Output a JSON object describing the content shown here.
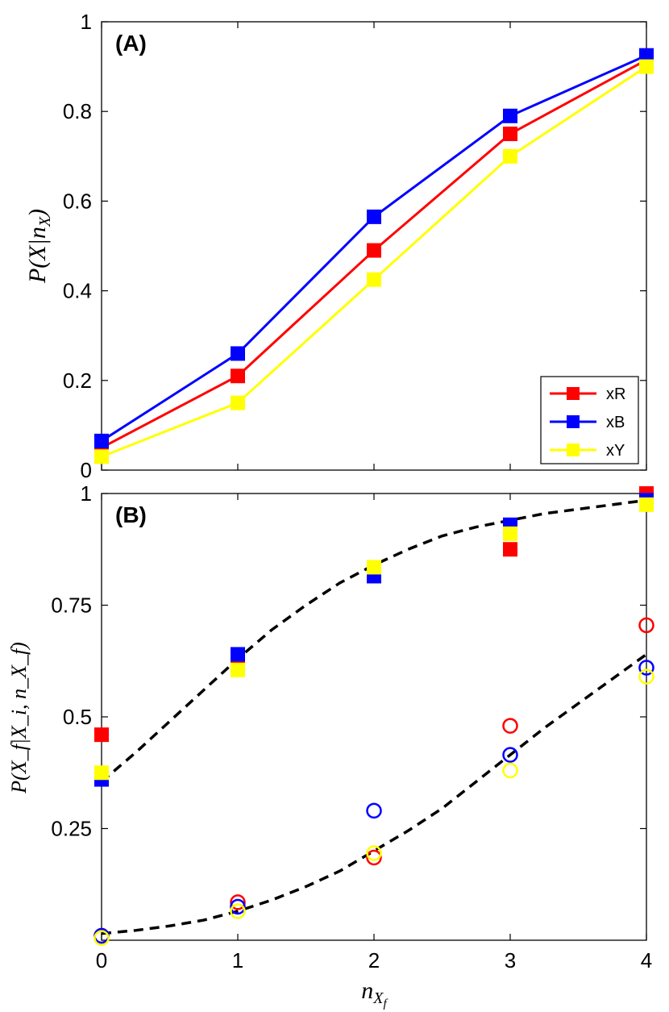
{
  "colors": {
    "xR": "#ff0000",
    "xB": "#0000ff",
    "xY": "#ffff00",
    "fit": "#000000"
  },
  "chart_data": [
    {
      "panel": "A",
      "type": "line",
      "title": "(A)",
      "xlabel": "n_X",
      "ylabel": {
        "prefix": "P(X|n",
        "sub": "X",
        "suffix": ")"
      },
      "xlim": [
        0,
        4
      ],
      "ylim": [
        0,
        1
      ],
      "yticks": [
        0,
        0.2,
        0.4,
        0.6,
        0.8,
        1
      ],
      "ytick_labels": [
        "0",
        "0.2",
        "0.4",
        "0.6",
        "0.8",
        "1"
      ],
      "grid": false,
      "legend": {
        "position": "bottom-right",
        "entries": [
          "xR",
          "xB",
          "xY"
        ]
      },
      "x": [
        0,
        1,
        2,
        3,
        4
      ],
      "series": [
        {
          "name": "xR",
          "color_key": "xR",
          "marker": "square",
          "values": [
            0.05,
            0.21,
            0.49,
            0.75,
            0.915
          ]
        },
        {
          "name": "xB",
          "color_key": "xB",
          "marker": "square",
          "values": [
            0.065,
            0.26,
            0.565,
            0.79,
            0.925
          ]
        },
        {
          "name": "xY",
          "color_key": "xY",
          "marker": "square",
          "values": [
            0.03,
            0.15,
            0.425,
            0.7,
            0.9
          ]
        }
      ]
    },
    {
      "panel": "B",
      "type": "scatter",
      "title": "(B)",
      "xlabel": {
        "prefix": "n",
        "sub": "X",
        "subsub": "f"
      },
      "ylabel": {
        "text": "P(X_f|X_i, n_X_f)"
      },
      "xlim": [
        0,
        4
      ],
      "ylim": [
        0,
        1
      ],
      "xticks": [
        0,
        1,
        2,
        3,
        4
      ],
      "xtick_labels": [
        "0",
        "1",
        "2",
        "3",
        "4"
      ],
      "yticks": [
        0.25,
        0.5,
        0.75,
        1
      ],
      "ytick_labels": [
        "0.25",
        "0.5",
        "0.75",
        "1"
      ],
      "grid": false,
      "x": [
        0,
        1,
        2,
        3,
        4
      ],
      "series": [
        {
          "name": "xR",
          "color_key": "xR",
          "marker": "square",
          "values": [
            0.46,
            0.625,
            0.82,
            0.875,
            1.0
          ]
        },
        {
          "name": "xB",
          "color_key": "xB",
          "marker": "square",
          "values": [
            0.36,
            0.64,
            0.815,
            0.93,
            0.985
          ]
        },
        {
          "name": "xY",
          "color_key": "xY",
          "marker": "square",
          "values": [
            0.375,
            0.605,
            0.835,
            0.91,
            0.975
          ]
        },
        {
          "name": "xR",
          "color_key": "xR",
          "marker": "circle",
          "values": [
            0.01,
            0.085,
            0.185,
            0.48,
            0.705
          ]
        },
        {
          "name": "xB",
          "color_key": "xB",
          "marker": "circle",
          "values": [
            0.01,
            0.075,
            0.29,
            0.415,
            0.61
          ]
        },
        {
          "name": "xY",
          "color_key": "xY",
          "marker": "circle",
          "values": [
            0.005,
            0.065,
            0.195,
            0.38,
            0.59
          ]
        }
      ],
      "fits": [
        {
          "name": "upper-fit",
          "style": "dashed",
          "x": [
            0,
            0.25,
            0.5,
            0.75,
            1,
            1.25,
            1.5,
            1.75,
            2,
            2.25,
            2.5,
            2.75,
            3,
            3.25,
            3.5,
            3.75,
            4
          ],
          "values": [
            0.355,
            0.42,
            0.49,
            0.56,
            0.63,
            0.695,
            0.75,
            0.8,
            0.84,
            0.875,
            0.905,
            0.925,
            0.94,
            0.955,
            0.965,
            0.975,
            0.985
          ]
        },
        {
          "name": "lower-fit",
          "style": "dashed",
          "x": [
            0,
            0.25,
            0.5,
            0.75,
            1,
            1.25,
            1.5,
            1.75,
            2,
            2.25,
            2.5,
            2.75,
            3,
            3.25,
            3.5,
            3.75,
            4
          ],
          "values": [
            0.015,
            0.022,
            0.032,
            0.045,
            0.065,
            0.09,
            0.12,
            0.155,
            0.2,
            0.245,
            0.295,
            0.355,
            0.415,
            0.475,
            0.53,
            0.585,
            0.64
          ]
        }
      ]
    }
  ]
}
